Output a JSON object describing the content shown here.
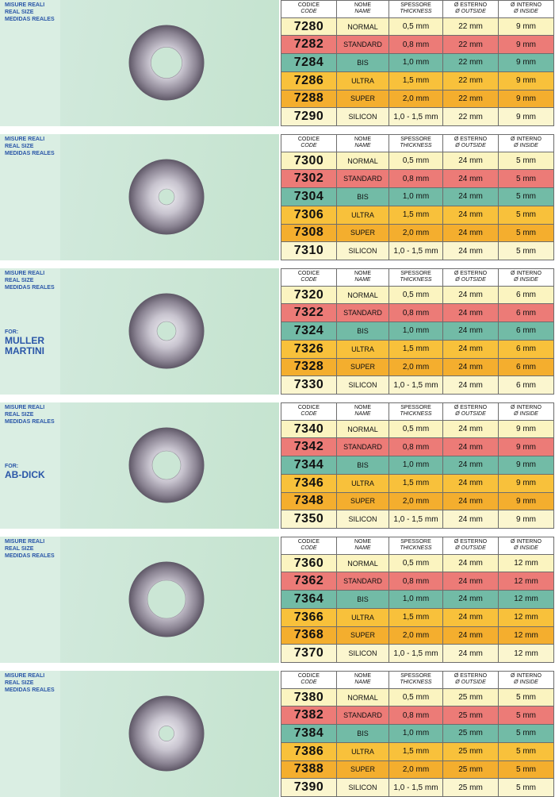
{
  "labels": {
    "misure": [
      "MISURE REALI",
      "REAL SIZE",
      "MEDIDAS REALES"
    ],
    "for": "FOR:"
  },
  "header": {
    "code": [
      "CODICE",
      "CODE"
    ],
    "name": [
      "NOME",
      "NAME"
    ],
    "thickness": [
      "SPESSORE",
      "THICKNESS"
    ],
    "outside": [
      "Ø ESTERNO",
      "Ø OUTSIDE"
    ],
    "inside": [
      "Ø INTERNO",
      "Ø INSIDE"
    ]
  },
  "row_colors": [
    "#fbf4c0",
    "#ec7b77",
    "#72bba6",
    "#f8c13b",
    "#f4ae2e",
    "#fbf6cf"
  ],
  "sections": [
    {
      "hole_mm": 9,
      "for_name": [],
      "rows": [
        [
          "7280",
          "NORMAL",
          "0,5 mm",
          "22 mm",
          "9 mm"
        ],
        [
          "7282",
          "STANDARD",
          "0,8 mm",
          "22 mm",
          "9 mm"
        ],
        [
          "7284",
          "BIS",
          "1,0 mm",
          "22 mm",
          "9 mm"
        ],
        [
          "7286",
          "ULTRA",
          "1,5 mm",
          "22 mm",
          "9 mm"
        ],
        [
          "7288",
          "SUPER",
          "2,0 mm",
          "22 mm",
          "9 mm"
        ],
        [
          "7290",
          "SILICON",
          "1,0 - 1,5 mm",
          "22 mm",
          "9 mm"
        ]
      ]
    },
    {
      "hole_mm": 5,
      "for_name": [],
      "rows": [
        [
          "7300",
          "NORMAL",
          "0,5 mm",
          "24 mm",
          "5 mm"
        ],
        [
          "7302",
          "STANDARD",
          "0,8 mm",
          "24 mm",
          "5 mm"
        ],
        [
          "7304",
          "BIS",
          "1,0 mm",
          "24 mm",
          "5 mm"
        ],
        [
          "7306",
          "ULTRA",
          "1,5 mm",
          "24 mm",
          "5 mm"
        ],
        [
          "7308",
          "SUPER",
          "2,0 mm",
          "24 mm",
          "5 mm"
        ],
        [
          "7310",
          "SILICON",
          "1,0 - 1,5 mm",
          "24 mm",
          "5 mm"
        ]
      ]
    },
    {
      "hole_mm": 6,
      "for_name": [
        "MULLER",
        "MARTINI"
      ],
      "rows": [
        [
          "7320",
          "NORMAL",
          "0,5 mm",
          "24 mm",
          "6 mm"
        ],
        [
          "7322",
          "STANDARD",
          "0,8 mm",
          "24 mm",
          "6 mm"
        ],
        [
          "7324",
          "BIS",
          "1,0 mm",
          "24 mm",
          "6 mm"
        ],
        [
          "7326",
          "ULTRA",
          "1,5 mm",
          "24 mm",
          "6 mm"
        ],
        [
          "7328",
          "SUPER",
          "2,0 mm",
          "24 mm",
          "6 mm"
        ],
        [
          "7330",
          "SILICON",
          "1,0 - 1,5 mm",
          "24 mm",
          "6 mm"
        ]
      ]
    },
    {
      "hole_mm": 9,
      "for_name": [
        "AB-DICK"
      ],
      "rows": [
        [
          "7340",
          "NORMAL",
          "0,5 mm",
          "24 mm",
          "9 mm"
        ],
        [
          "7342",
          "STANDARD",
          "0,8 mm",
          "24 mm",
          "9 mm"
        ],
        [
          "7344",
          "BIS",
          "1,0 mm",
          "24 mm",
          "9 mm"
        ],
        [
          "7346",
          "ULTRA",
          "1,5 mm",
          "24 mm",
          "9 mm"
        ],
        [
          "7348",
          "SUPER",
          "2,0 mm",
          "24 mm",
          "9 mm"
        ],
        [
          "7350",
          "SILICON",
          "1,0 - 1,5 mm",
          "24 mm",
          "9 mm"
        ]
      ]
    },
    {
      "hole_mm": 12,
      "for_name": [],
      "rows": [
        [
          "7360",
          "NORMAL",
          "0,5 mm",
          "24 mm",
          "12 mm"
        ],
        [
          "7362",
          "STANDARD",
          "0,8 mm",
          "24 mm",
          "12 mm"
        ],
        [
          "7364",
          "BIS",
          "1,0 mm",
          "24 mm",
          "12 mm"
        ],
        [
          "7366",
          "ULTRA",
          "1,5 mm",
          "24 mm",
          "12 mm"
        ],
        [
          "7368",
          "SUPER",
          "2,0 mm",
          "24 mm",
          "12 mm"
        ],
        [
          "7370",
          "SILICON",
          "1,0 - 1,5 mm",
          "24 mm",
          "12 mm"
        ]
      ]
    },
    {
      "hole_mm": 5,
      "for_name": [],
      "rows": [
        [
          "7380",
          "NORMAL",
          "0,5 mm",
          "25 mm",
          "5 mm"
        ],
        [
          "7382",
          "STANDARD",
          "0,8 mm",
          "25 mm",
          "5 mm"
        ],
        [
          "7384",
          "BIS",
          "1,0 mm",
          "25 mm",
          "5 mm"
        ],
        [
          "7386",
          "ULTRA",
          "1,5 mm",
          "25 mm",
          "5 mm"
        ],
        [
          "7388",
          "SUPER",
          "2,0 mm",
          "25 mm",
          "5 mm"
        ],
        [
          "7390",
          "SILICON",
          "1,0 - 1,5 mm",
          "25 mm",
          "5 mm"
        ]
      ]
    }
  ]
}
